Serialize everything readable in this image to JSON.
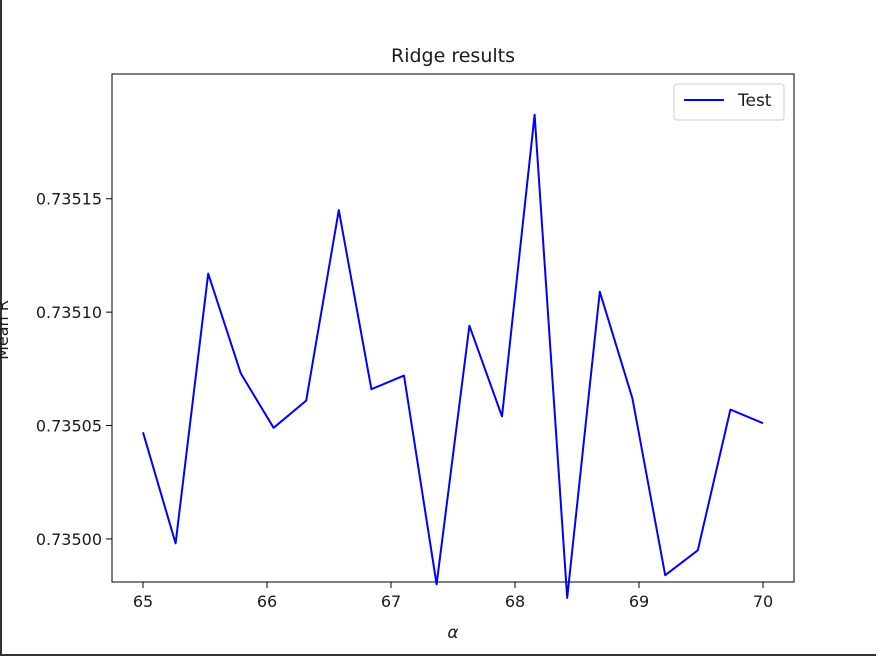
{
  "chart_data": {
    "type": "line",
    "title": "Ridge results",
    "xlabel": "α",
    "ylabel": "Mean R",
    "xlim": [
      64.75,
      70.25
    ],
    "ylim": [
      0.734981,
      0.735205
    ],
    "xticks": [
      65,
      66,
      67,
      68,
      69,
      70
    ],
    "xtick_labels": [
      "65",
      "66",
      "67",
      "68",
      "69",
      "70"
    ],
    "yticks": [
      0.735,
      0.73505,
      0.7351,
      0.73515
    ],
    "ytick_labels": [
      "0.73500",
      "0.73505",
      "0.73510",
      "0.73515"
    ],
    "grid": false,
    "legend_position": "top-right",
    "series": [
      {
        "name": "Test",
        "color": "#0000ff",
        "x": [
          65.0,
          65.263,
          65.526,
          65.789,
          66.053,
          66.316,
          66.579,
          66.842,
          67.105,
          67.368,
          67.632,
          67.895,
          68.158,
          68.421,
          68.684,
          68.947,
          69.211,
          69.474,
          69.737,
          70.0
        ],
        "y": [
          0.735047,
          0.734998,
          0.735117,
          0.735073,
          0.735049,
          0.735061,
          0.735145,
          0.735066,
          0.735072,
          0.73498,
          0.735094,
          0.735054,
          0.735187,
          0.734974,
          0.735109,
          0.735062,
          0.734984,
          0.734995,
          0.735057,
          0.735051
        ]
      }
    ]
  }
}
